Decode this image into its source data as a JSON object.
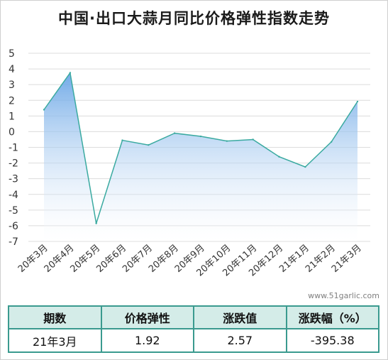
{
  "title": "中国·出口大蒜月同比价格弹性指数走势",
  "watermark": "www.51garlic.com",
  "colors": {
    "line": "#3aaaa0",
    "area_top": "#6aa6e6",
    "area_bottom": "#ffffff",
    "grid": "#dcdcdc",
    "table_border": "#3a9a8f",
    "table_header_bg": "#d4ece8"
  },
  "chart_data": {
    "type": "area",
    "title": "中国·出口大蒜月同比价格弹性指数走势",
    "xlabel": "",
    "ylabel": "",
    "categories": [
      "20年3月",
      "20年4月",
      "20年5月",
      "20年6月",
      "20年7月",
      "20年8月",
      "20年9月",
      "20年10月",
      "20年11月",
      "20年12月",
      "21年1月",
      "21年2月",
      "21年3月"
    ],
    "series": [
      {
        "values": [
          1.4,
          3.75,
          -5.85,
          -0.55,
          -0.85,
          -0.1,
          -0.3,
          -0.6,
          -0.5,
          -1.6,
          -2.25,
          -0.65,
          1.92
        ]
      }
    ],
    "ylim": [
      -7,
      5
    ],
    "yticks": [
      5,
      4,
      3,
      2,
      1,
      0,
      -1,
      -2,
      -3,
      -4,
      -5,
      -6,
      -7
    ],
    "grid": true,
    "legend": "none"
  },
  "summary": {
    "headers": [
      "期数",
      "价格弹性",
      "涨跌值",
      "涨跌幅（%）"
    ],
    "row": [
      "21年3月",
      "1.92",
      "2.57",
      "-395.38"
    ]
  }
}
